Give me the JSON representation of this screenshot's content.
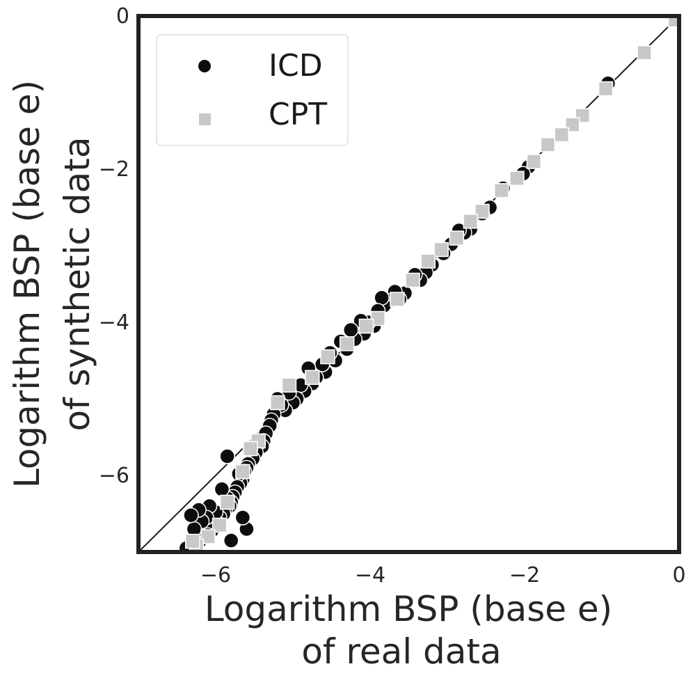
{
  "chart_data": {
    "type": "scatter",
    "xlabel": [
      "Logarithm BSP (base e)",
      "of real data"
    ],
    "ylabel": [
      "Logarithm BSP (base e)",
      "of synthetic data"
    ],
    "xlim": [
      -7,
      0
    ],
    "ylim": [
      -7,
      0
    ],
    "xticks": [
      -6,
      -4,
      -2,
      0
    ],
    "yticks": [
      0,
      -2,
      -4,
      -6
    ],
    "tick_labels_x": [
      "−6",
      "−4",
      "−2",
      "0"
    ],
    "tick_labels_y": [
      "0",
      "−2",
      "−4",
      "−6"
    ],
    "grid": false,
    "legend_position": "top-left",
    "reference_line": {
      "from": [
        -7,
        -7
      ],
      "to": [
        0,
        0
      ],
      "color": "#1a1a1a"
    },
    "series": [
      {
        "name": "ICD",
        "marker": "circle",
        "color": "#0d0d0d",
        "points": [
          [
            -0.92,
            -0.88
          ],
          [
            -1.95,
            -1.97
          ],
          [
            -2.02,
            -2.06
          ],
          [
            -2.28,
            -2.25
          ],
          [
            -2.45,
            -2.5
          ],
          [
            -2.55,
            -2.58
          ],
          [
            -2.7,
            -2.78
          ],
          [
            -2.78,
            -2.83
          ],
          [
            -2.85,
            -2.8
          ],
          [
            -2.95,
            -2.98
          ],
          [
            -3.05,
            -3.1
          ],
          [
            -3.2,
            -3.25
          ],
          [
            -3.28,
            -3.35
          ],
          [
            -3.35,
            -3.45
          ],
          [
            -3.42,
            -3.38
          ],
          [
            -3.55,
            -3.62
          ],
          [
            -3.62,
            -3.7
          ],
          [
            -3.68,
            -3.6
          ],
          [
            -3.75,
            -3.72
          ],
          [
            -3.82,
            -3.78
          ],
          [
            -3.85,
            -3.68
          ],
          [
            -3.9,
            -3.85
          ],
          [
            -3.95,
            -4.05
          ],
          [
            -4.02,
            -4.0
          ],
          [
            -4.08,
            -4.15
          ],
          [
            -4.12,
            -3.98
          ],
          [
            -4.2,
            -4.22
          ],
          [
            -4.25,
            -4.1
          ],
          [
            -4.3,
            -4.35
          ],
          [
            -4.38,
            -4.25
          ],
          [
            -4.45,
            -4.5
          ],
          [
            -4.52,
            -4.4
          ],
          [
            -4.58,
            -4.65
          ],
          [
            -4.62,
            -4.55
          ],
          [
            -4.7,
            -4.72
          ],
          [
            -4.75,
            -4.8
          ],
          [
            -4.8,
            -4.6
          ],
          [
            -4.85,
            -4.9
          ],
          [
            -4.9,
            -4.82
          ],
          [
            -4.95,
            -5.0
          ],
          [
            -5.0,
            -5.05
          ],
          [
            -5.05,
            -4.92
          ],
          [
            -5.1,
            -5.15
          ],
          [
            -5.15,
            -5.08
          ],
          [
            -5.2,
            -5.0
          ],
          [
            -5.25,
            -5.2
          ],
          [
            -5.28,
            -5.28
          ],
          [
            -5.3,
            -5.35
          ],
          [
            -5.35,
            -5.45
          ],
          [
            -5.38,
            -5.55
          ],
          [
            -5.4,
            -5.62
          ],
          [
            -5.45,
            -5.58
          ],
          [
            -5.48,
            -5.7
          ],
          [
            -5.52,
            -5.78
          ],
          [
            -5.55,
            -5.65
          ],
          [
            -5.58,
            -5.85
          ],
          [
            -5.6,
            -5.9
          ],
          [
            -5.63,
            -5.95
          ],
          [
            -5.65,
            -6.05
          ],
          [
            -5.68,
            -6.1
          ],
          [
            -5.7,
            -5.98
          ],
          [
            -5.72,
            -6.15
          ],
          [
            -5.75,
            -6.22
          ],
          [
            -5.78,
            -6.28
          ],
          [
            -5.8,
            -6.35
          ],
          [
            -5.82,
            -6.4
          ],
          [
            -5.85,
            -6.3
          ],
          [
            -5.88,
            -6.45
          ],
          [
            -5.9,
            -6.5
          ],
          [
            -5.92,
            -6.18
          ],
          [
            -5.95,
            -6.55
          ],
          [
            -5.98,
            -6.62
          ],
          [
            -6.0,
            -6.48
          ],
          [
            -6.02,
            -6.68
          ],
          [
            -6.05,
            -6.72
          ],
          [
            -6.08,
            -6.4
          ],
          [
            -6.1,
            -6.78
          ],
          [
            -6.12,
            -6.55
          ],
          [
            -6.15,
            -6.82
          ],
          [
            -6.18,
            -6.6
          ],
          [
            -6.2,
            -6.85
          ],
          [
            -6.22,
            -6.45
          ],
          [
            -6.25,
            -6.88
          ],
          [
            -6.28,
            -6.7
          ],
          [
            -6.3,
            -6.9
          ],
          [
            -6.32,
            -6.52
          ],
          [
            -6.35,
            -6.92
          ],
          [
            -6.38,
            -6.95
          ],
          [
            -5.8,
            -6.85
          ],
          [
            -5.85,
            -5.75
          ],
          [
            -5.6,
            -6.7
          ],
          [
            -5.65,
            -6.55
          ]
        ]
      },
      {
        "name": "CPT",
        "marker": "square",
        "color": "#c8c8c8",
        "points": [
          [
            -0.05,
            -0.05
          ],
          [
            -0.45,
            -0.48
          ],
          [
            -0.95,
            -0.95
          ],
          [
            -1.25,
            -1.3
          ],
          [
            -1.38,
            -1.42
          ],
          [
            -1.52,
            -1.55
          ],
          [
            -1.7,
            -1.68
          ],
          [
            -1.88,
            -1.9
          ],
          [
            -2.1,
            -2.12
          ],
          [
            -2.3,
            -2.28
          ],
          [
            -2.55,
            -2.55
          ],
          [
            -2.7,
            -2.68
          ],
          [
            -2.88,
            -2.9
          ],
          [
            -3.08,
            -3.05
          ],
          [
            -3.25,
            -3.2
          ],
          [
            -3.45,
            -3.45
          ],
          [
            -3.65,
            -3.7
          ],
          [
            -3.9,
            -3.95
          ],
          [
            -4.05,
            -4.05
          ],
          [
            -4.3,
            -4.28
          ],
          [
            -4.55,
            -4.45
          ],
          [
            -4.75,
            -4.72
          ],
          [
            -5.05,
            -4.82
          ],
          [
            -5.2,
            -5.05
          ],
          [
            -5.45,
            -5.55
          ],
          [
            -5.55,
            -5.65
          ],
          [
            -5.65,
            -5.95
          ],
          [
            -5.85,
            -6.35
          ],
          [
            -5.95,
            -6.65
          ],
          [
            -6.1,
            -6.8
          ],
          [
            -6.25,
            -6.92
          ],
          [
            -6.3,
            -6.86
          ]
        ]
      }
    ]
  }
}
